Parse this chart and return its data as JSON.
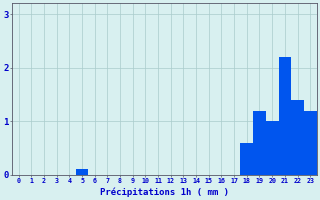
{
  "hours": [
    0,
    1,
    2,
    3,
    4,
    5,
    6,
    7,
    8,
    9,
    10,
    11,
    12,
    13,
    14,
    15,
    16,
    17,
    18,
    19,
    20,
    21,
    22,
    23
  ],
  "values": [
    0,
    0,
    0,
    0,
    0,
    0.1,
    0,
    0,
    0,
    0,
    0,
    0,
    0,
    0,
    0,
    0,
    0,
    0,
    0.6,
    1.2,
    1.0,
    2.2,
    1.4,
    1.2
  ],
  "bar_color": "#0055ee",
  "background_color": "#d8f0f0",
  "grid_color": "#aacccc",
  "xlabel": "Précipitations 1h ( mm )",
  "xlabel_color": "#0000cc",
  "tick_color": "#0000cc",
  "axis_color": "#555566",
  "ylim": [
    0,
    3.2
  ],
  "yticks": [
    0,
    1,
    2,
    3
  ],
  "xlim": [
    -0.5,
    23.5
  ],
  "figsize": [
    3.2,
    2.0
  ],
  "dpi": 100
}
